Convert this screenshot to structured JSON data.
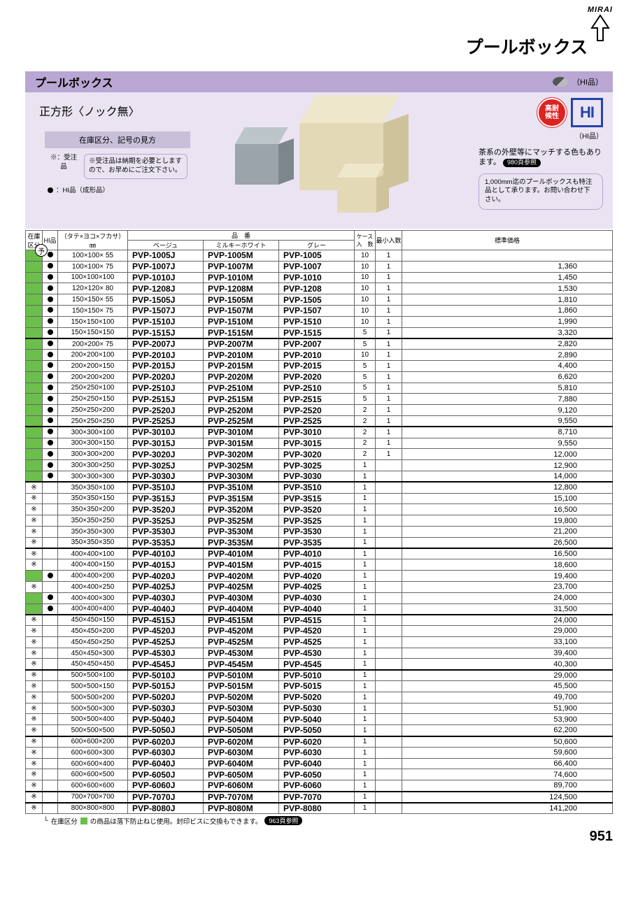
{
  "brand": {
    "name": "MIRAI"
  },
  "category_title": "プールボックス",
  "section_bar": {
    "title": "プールボックス",
    "marker_label": "（HI品）"
  },
  "hero": {
    "shape_title": "正方形〈ノック無〉",
    "legend_title": "在庫区分、記号の見方",
    "legend_symbol": "※：受注品",
    "legend_text": "※受注品は納期を必要としますので、お早めにご注文下さい。",
    "legend_hi": "：HI品（成形品）",
    "right": {
      "badge_red": "高耐\n候性",
      "badge_hi": "HI",
      "sub": "（HI品）",
      "msg_line1": "茶系の外壁等にマッチする色もあります。",
      "msg_pill": "980頁参照",
      "note": "1,000mm迄のプールボックスも特注品として承ります。お問い合わせ下さい。"
    }
  },
  "table_headers": {
    "stock": "在庫区分",
    "hi": "HI品",
    "dim": "（タテ×ヨコ×フカサ）㎜",
    "pn_group": "品　番",
    "beige": "ベージュ",
    "milky": "ミルキーホワイト",
    "gray": "グレー",
    "case": "ケース\n入　数",
    "min": "最小入数",
    "price": "標準価格"
  },
  "rows": [
    {
      "s": true,
      "h": true,
      "m": "",
      "d": "100×100× 55",
      "b": "PVP-1005J",
      "w": "PVP-1005M",
      "g": "PVP-1005",
      "c": "10",
      "n": "1",
      "p": "",
      "t": false
    },
    {
      "s": true,
      "h": true,
      "m": "",
      "d": "100×100× 75",
      "b": "PVP-1007J",
      "w": "PVP-1007M",
      "g": "PVP-1007",
      "c": "10",
      "n": "1",
      "p": "1,360",
      "t": false
    },
    {
      "s": true,
      "h": true,
      "m": "",
      "d": "100×100×100",
      "b": "PVP-1010J",
      "w": "PVP-1010M",
      "g": "PVP-1010",
      "c": "10",
      "n": "1",
      "p": "1,450",
      "t": false
    },
    {
      "s": true,
      "h": true,
      "m": "",
      "d": "120×120× 80",
      "b": "PVP-1208J",
      "w": "PVP-1208M",
      "g": "PVP-1208",
      "c": "10",
      "n": "1",
      "p": "1,530",
      "t": false
    },
    {
      "s": true,
      "h": true,
      "m": "",
      "d": "150×150× 55",
      "b": "PVP-1505J",
      "w": "PVP-1505M",
      "g": "PVP-1505",
      "c": "10",
      "n": "1",
      "p": "1,810",
      "t": false
    },
    {
      "s": true,
      "h": true,
      "m": "",
      "d": "150×150× 75",
      "b": "PVP-1507J",
      "w": "PVP-1507M",
      "g": "PVP-1507",
      "c": "10",
      "n": "1",
      "p": "1,860",
      "t": false
    },
    {
      "s": true,
      "h": true,
      "m": "",
      "d": "150×150×100",
      "b": "PVP-1510J",
      "w": "PVP-1510M",
      "g": "PVP-1510",
      "c": "10",
      "n": "1",
      "p": "1,990",
      "t": false
    },
    {
      "s": true,
      "h": true,
      "m": "",
      "d": "150×150×150",
      "b": "PVP-1515J",
      "w": "PVP-1515M",
      "g": "PVP-1515",
      "c": "5",
      "n": "1",
      "p": "3,320",
      "t": false
    },
    {
      "s": true,
      "h": true,
      "m": "",
      "d": "200×200× 75",
      "b": "PVP-2007J",
      "w": "PVP-2007M",
      "g": "PVP-2007",
      "c": "5",
      "n": "1",
      "p": "2,820",
      "t": true
    },
    {
      "s": true,
      "h": true,
      "m": "",
      "d": "200×200×100",
      "b": "PVP-2010J",
      "w": "PVP-2010M",
      "g": "PVP-2010",
      "c": "10",
      "n": "1",
      "p": "2,890",
      "t": false
    },
    {
      "s": true,
      "h": true,
      "m": "",
      "d": "200×200×150",
      "b": "PVP-2015J",
      "w": "PVP-2015M",
      "g": "PVP-2015",
      "c": "5",
      "n": "1",
      "p": "4,400",
      "t": false
    },
    {
      "s": true,
      "h": true,
      "m": "",
      "d": "200×200×200",
      "b": "PVP-2020J",
      "w": "PVP-2020M",
      "g": "PVP-2020",
      "c": "5",
      "n": "1",
      "p": "6,620",
      "t": false
    },
    {
      "s": true,
      "h": true,
      "m": "",
      "d": "250×250×100",
      "b": "PVP-2510J",
      "w": "PVP-2510M",
      "g": "PVP-2510",
      "c": "5",
      "n": "1",
      "p": "5,810",
      "t": false
    },
    {
      "s": true,
      "h": true,
      "m": "",
      "d": "250×250×150",
      "b": "PVP-2515J",
      "w": "PVP-2515M",
      "g": "PVP-2515",
      "c": "5",
      "n": "1",
      "p": "7,880",
      "t": false
    },
    {
      "s": true,
      "h": true,
      "m": "",
      "d": "250×250×200",
      "b": "PVP-2520J",
      "w": "PVP-2520M",
      "g": "PVP-2520",
      "c": "2",
      "n": "1",
      "p": "9,120",
      "t": false
    },
    {
      "s": true,
      "h": true,
      "m": "",
      "d": "250×250×250",
      "b": "PVP-2525J",
      "w": "PVP-2525M",
      "g": "PVP-2525",
      "c": "2",
      "n": "1",
      "p": "9,550",
      "t": false
    },
    {
      "s": true,
      "h": true,
      "m": "",
      "d": "300×300×100",
      "b": "PVP-3010J",
      "w": "PVP-3010M",
      "g": "PVP-3010",
      "c": "2",
      "n": "1",
      "p": "8,710",
      "t": true
    },
    {
      "s": true,
      "h": true,
      "m": "",
      "d": "300×300×150",
      "b": "PVP-3015J",
      "w": "PVP-3015M",
      "g": "PVP-3015",
      "c": "2",
      "n": "1",
      "p": "9,550",
      "t": false
    },
    {
      "s": true,
      "h": true,
      "m": "",
      "d": "300×300×200",
      "b": "PVP-3020J",
      "w": "PVP-3020M",
      "g": "PVP-3020",
      "c": "2",
      "n": "1",
      "p": "12,000",
      "t": false
    },
    {
      "s": true,
      "h": true,
      "m": "",
      "d": "300×300×250",
      "b": "PVP-3025J",
      "w": "PVP-3025M",
      "g": "PVP-3025",
      "c": "1",
      "n": "",
      "p": "12,900",
      "t": false
    },
    {
      "s": true,
      "h": true,
      "m": "",
      "d": "300×300×300",
      "b": "PVP-3030J",
      "w": "PVP-3030M",
      "g": "PVP-3030",
      "c": "1",
      "n": "",
      "p": "14,000",
      "t": false
    },
    {
      "s": false,
      "h": false,
      "m": "※",
      "d": "350×350×100",
      "b": "PVP-3510J",
      "w": "PVP-3510M",
      "g": "PVP-3510",
      "c": "1",
      "n": "",
      "p": "12,800",
      "t": true
    },
    {
      "s": false,
      "h": false,
      "m": "※",
      "d": "350×350×150",
      "b": "PVP-3515J",
      "w": "PVP-3515M",
      "g": "PVP-3515",
      "c": "1",
      "n": "",
      "p": "15,100",
      "t": false
    },
    {
      "s": false,
      "h": false,
      "m": "※",
      "d": "350×350×200",
      "b": "PVP-3520J",
      "w": "PVP-3520M",
      "g": "PVP-3520",
      "c": "1",
      "n": "",
      "p": "16,500",
      "t": false
    },
    {
      "s": false,
      "h": false,
      "m": "※",
      "d": "350×350×250",
      "b": "PVP-3525J",
      "w": "PVP-3525M",
      "g": "PVP-3525",
      "c": "1",
      "n": "",
      "p": "19,800",
      "t": false
    },
    {
      "s": false,
      "h": false,
      "m": "※",
      "d": "350×350×300",
      "b": "PVP-3530J",
      "w": "PVP-3530M",
      "g": "PVP-3530",
      "c": "1",
      "n": "",
      "p": "21,200",
      "t": false
    },
    {
      "s": false,
      "h": false,
      "m": "※",
      "d": "350×350×350",
      "b": "PVP-3535J",
      "w": "PVP-3535M",
      "g": "PVP-3535",
      "c": "1",
      "n": "",
      "p": "26,500",
      "t": false
    },
    {
      "s": false,
      "h": false,
      "m": "※",
      "d": "400×400×100",
      "b": "PVP-4010J",
      "w": "PVP-4010M",
      "g": "PVP-4010",
      "c": "1",
      "n": "",
      "p": "16,500",
      "t": true
    },
    {
      "s": false,
      "h": false,
      "m": "※",
      "d": "400×400×150",
      "b": "PVP-4015J",
      "w": "PVP-4015M",
      "g": "PVP-4015",
      "c": "1",
      "n": "",
      "p": "18,600",
      "t": false
    },
    {
      "s": true,
      "h": true,
      "m": "",
      "d": "400×400×200",
      "b": "PVP-4020J",
      "w": "PVP-4020M",
      "g": "PVP-4020",
      "c": "1",
      "n": "",
      "p": "19,400",
      "t": false
    },
    {
      "s": false,
      "h": false,
      "m": "※",
      "d": "400×400×250",
      "b": "PVP-4025J",
      "w": "PVP-4025M",
      "g": "PVP-4025",
      "c": "1",
      "n": "",
      "p": "23,700",
      "t": false
    },
    {
      "s": true,
      "h": true,
      "m": "",
      "d": "400×400×300",
      "b": "PVP-4030J",
      "w": "PVP-4030M",
      "g": "PVP-4030",
      "c": "1",
      "n": "",
      "p": "24,000",
      "t": false
    },
    {
      "s": true,
      "h": true,
      "m": "",
      "d": "400×400×400",
      "b": "PVP-4040J",
      "w": "PVP-4040M",
      "g": "PVP-4040",
      "c": "1",
      "n": "",
      "p": "31,500",
      "t": false
    },
    {
      "s": false,
      "h": false,
      "m": "※",
      "d": "450×450×150",
      "b": "PVP-4515J",
      "w": "PVP-4515M",
      "g": "PVP-4515",
      "c": "1",
      "n": "",
      "p": "24,000",
      "t": true
    },
    {
      "s": false,
      "h": false,
      "m": "※",
      "d": "450×450×200",
      "b": "PVP-4520J",
      "w": "PVP-4520M",
      "g": "PVP-4520",
      "c": "1",
      "n": "",
      "p": "29,000",
      "t": false
    },
    {
      "s": false,
      "h": false,
      "m": "※",
      "d": "450×450×250",
      "b": "PVP-4525J",
      "w": "PVP-4525M",
      "g": "PVP-4525",
      "c": "1",
      "n": "",
      "p": "33,100",
      "t": false
    },
    {
      "s": false,
      "h": false,
      "m": "※",
      "d": "450×450×300",
      "b": "PVP-4530J",
      "w": "PVP-4530M",
      "g": "PVP-4530",
      "c": "1",
      "n": "",
      "p": "39,400",
      "t": false
    },
    {
      "s": false,
      "h": false,
      "m": "※",
      "d": "450×450×450",
      "b": "PVP-4545J",
      "w": "PVP-4545M",
      "g": "PVP-4545",
      "c": "1",
      "n": "",
      "p": "40,300",
      "t": false
    },
    {
      "s": false,
      "h": false,
      "m": "※",
      "d": "500×500×100",
      "b": "PVP-5010J",
      "w": "PVP-5010M",
      "g": "PVP-5010",
      "c": "1",
      "n": "",
      "p": "29,000",
      "t": true
    },
    {
      "s": false,
      "h": false,
      "m": "※",
      "d": "500×500×150",
      "b": "PVP-5015J",
      "w": "PVP-5015M",
      "g": "PVP-5015",
      "c": "1",
      "n": "",
      "p": "45,500",
      "t": false
    },
    {
      "s": false,
      "h": false,
      "m": "※",
      "d": "500×500×200",
      "b": "PVP-5020J",
      "w": "PVP-5020M",
      "g": "PVP-5020",
      "c": "1",
      "n": "",
      "p": "49,700",
      "t": false
    },
    {
      "s": false,
      "h": false,
      "m": "※",
      "d": "500×500×300",
      "b": "PVP-5030J",
      "w": "PVP-5030M",
      "g": "PVP-5030",
      "c": "1",
      "n": "",
      "p": "51,900",
      "t": false
    },
    {
      "s": false,
      "h": false,
      "m": "※",
      "d": "500×500×400",
      "b": "PVP-5040J",
      "w": "PVP-5040M",
      "g": "PVP-5040",
      "c": "1",
      "n": "",
      "p": "53,900",
      "t": false
    },
    {
      "s": false,
      "h": false,
      "m": "※",
      "d": "500×500×500",
      "b": "PVP-5050J",
      "w": "PVP-5050M",
      "g": "PVP-5050",
      "c": "1",
      "n": "",
      "p": "62,200",
      "t": false
    },
    {
      "s": false,
      "h": false,
      "m": "※",
      "d": "600×600×200",
      "b": "PVP-6020J",
      "w": "PVP-6020M",
      "g": "PVP-6020",
      "c": "1",
      "n": "",
      "p": "50,600",
      "t": true
    },
    {
      "s": false,
      "h": false,
      "m": "※",
      "d": "600×600×300",
      "b": "PVP-6030J",
      "w": "PVP-6030M",
      "g": "PVP-6030",
      "c": "1",
      "n": "",
      "p": "59,600",
      "t": false
    },
    {
      "s": false,
      "h": false,
      "m": "※",
      "d": "600×600×400",
      "b": "PVP-6040J",
      "w": "PVP-6040M",
      "g": "PVP-6040",
      "c": "1",
      "n": "",
      "p": "66,400",
      "t": false
    },
    {
      "s": false,
      "h": false,
      "m": "※",
      "d": "600×600×500",
      "b": "PVP-6050J",
      "w": "PVP-6050M",
      "g": "PVP-6050",
      "c": "1",
      "n": "",
      "p": "74,600",
      "t": false
    },
    {
      "s": false,
      "h": false,
      "m": "※",
      "d": "600×600×600",
      "b": "PVP-6060J",
      "w": "PVP-6060M",
      "g": "PVP-6060",
      "c": "1",
      "n": "",
      "p": "89,700",
      "t": false
    },
    {
      "s": false,
      "h": false,
      "m": "※",
      "d": "700×700×700",
      "b": "PVP-7070J",
      "w": "PVP-7070M",
      "g": "PVP-7070",
      "c": "1",
      "n": "",
      "p": "124,500",
      "t": true
    },
    {
      "s": false,
      "h": false,
      "m": "※",
      "d": "800×800×800",
      "b": "PVP-8080J",
      "w": "PVP-8080M",
      "g": "PVP-8080",
      "c": "1",
      "n": "",
      "p": "141,200",
      "t": true
    }
  ],
  "footnote": {
    "lead": "在庫区分",
    "text": "の商品は落下防止ねじ使用。封印ビスに交換もできます。",
    "pill": "963頁参照"
  },
  "page_number": "951",
  "yo_symbol": "予",
  "colors": {
    "purple_bar": "#b9a6d2",
    "purple_light": "#eae3f2",
    "green": "#6dbf4b",
    "red": "#d22",
    "blue": "#2244aa"
  }
}
